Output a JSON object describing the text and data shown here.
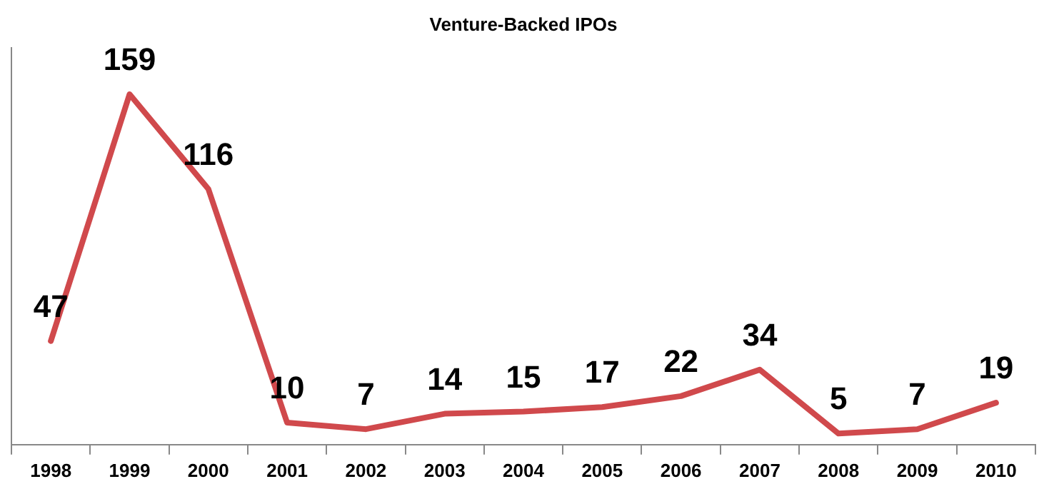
{
  "chart_data": {
    "type": "line",
    "title": "Venture-Backed IPOs",
    "categories": [
      "1998",
      "1999",
      "2000",
      "2001",
      "2002",
      "2003",
      "2004",
      "2005",
      "2006",
      "2007",
      "2008",
      "2009",
      "2010"
    ],
    "values": [
      47,
      159,
      116,
      10,
      7,
      14,
      15,
      17,
      22,
      34,
      5,
      7,
      19
    ],
    "color": "#d0494c",
    "ylim": [
      0,
      180
    ],
    "tick_labels": "x",
    "grid": false,
    "legend": false,
    "marker": "none",
    "line_style": "solid",
    "data_labels": true
  }
}
